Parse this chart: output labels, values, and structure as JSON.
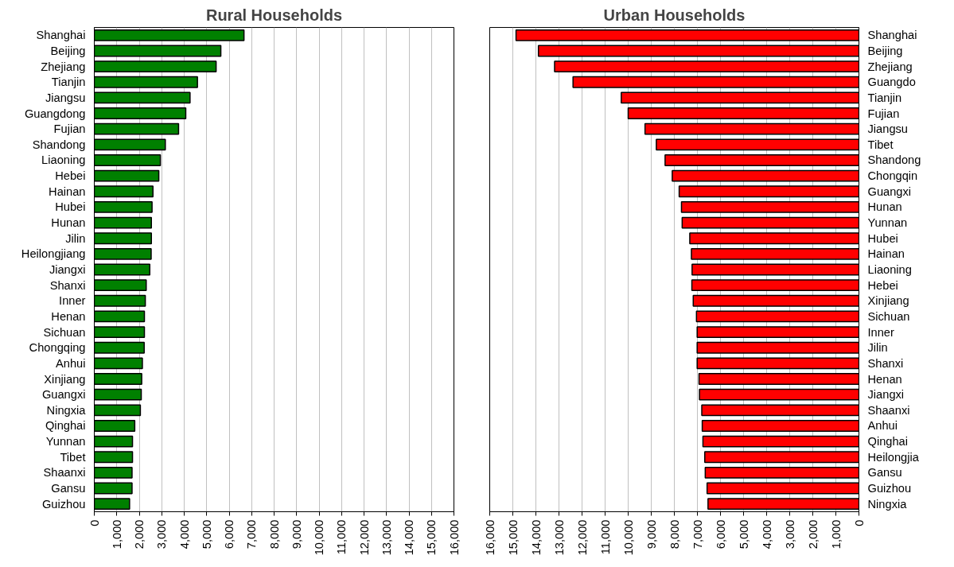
{
  "chart_data": [
    {
      "type": "bar",
      "orientation": "horizontal",
      "title": "Rural Households",
      "categories": [
        "Shanghai",
        "Beijing",
        "Zhejiang",
        "Tianjin",
        "Jiangsu",
        "Guangdong",
        "Fujian",
        "Shandong",
        "Liaoning",
        "Hebei",
        "Hainan",
        "Hubei",
        "Hunan",
        "Jilin",
        "Heilongjiang",
        "Jiangxi",
        "Shanxi",
        "Inner",
        "Henan",
        "Sichuan",
        "Chongqing",
        "Anhui",
        "Xinjiang",
        "Guangxi",
        "Ningxia",
        "Qinghai",
        "Yunnan",
        "Tibet",
        "Shaanxi",
        "Gansu",
        "Guizhou"
      ],
      "values": [
        6660,
        5630,
        5420,
        4590,
        4260,
        4070,
        3750,
        3160,
        2940,
        2870,
        2610,
        2570,
        2540,
        2540,
        2530,
        2470,
        2310,
        2270,
        2230,
        2230,
        2220,
        2140,
        2110,
        2090,
        2050,
        1800,
        1700,
        1700,
        1680,
        1680,
        1570
      ],
      "color": "#008000",
      "xlim": [
        0,
        16000
      ],
      "xticks": [
        0,
        {
          "value": 1000,
          "label": "1,000"
        },
        {
          "value": 2000,
          "label": "2,000"
        },
        {
          "value": 3000,
          "label": "3,000"
        },
        {
          "value": 4000,
          "label": "4,000"
        },
        {
          "value": 5000,
          "label": "5,000"
        },
        {
          "value": 6000,
          "label": "6,000"
        },
        {
          "value": 7000,
          "label": "7,000"
        },
        {
          "value": 8000,
          "label": "8,000"
        },
        {
          "value": 9000,
          "label": "9,000"
        },
        {
          "value": 10000,
          "label": "10,000"
        },
        {
          "value": 11000,
          "label": "11,000"
        },
        {
          "value": 12000,
          "label": "12,000"
        },
        {
          "value": 13000,
          "label": "13,000"
        },
        {
          "value": 14000,
          "label": "14,000"
        },
        {
          "value": 15000,
          "label": "15,000"
        },
        {
          "value": 16000,
          "label": "16,000"
        }
      ],
      "grid": "x"
    },
    {
      "type": "bar",
      "orientation": "horizontal",
      "title": "Urban Households",
      "categories": [
        "Shanghai",
        "Beijing",
        "Zhejiang",
        "Guangdo",
        "Tianjin",
        "Fujian",
        "Jiangsu",
        "Tibet",
        "Shandong",
        "Chongqin",
        "Guangxi",
        "Hunan",
        "Yunnan",
        "Hubei",
        "Hainan",
        "Liaoning",
        "Hebei",
        "Xinjiang",
        "Sichuan",
        "Inner",
        "Jilin",
        "Shanxi",
        "Henan",
        "Jiangxi",
        "Shaanxi",
        "Anhui",
        "Qinghai",
        "Heilongjia",
        "Gansu",
        "Guizhou",
        "Ningxia"
      ],
      "values": [
        14860,
        13890,
        13190,
        12390,
        10300,
        10000,
        9270,
        8780,
        8400,
        8090,
        7790,
        7690,
        7660,
        7330,
        7260,
        7230,
        7240,
        7180,
        7040,
        7010,
        7010,
        7010,
        6930,
        6910,
        6810,
        6790,
        6760,
        6680,
        6660,
        6580,
        6540
      ],
      "color": "#ff0000",
      "xlim": [
        16000,
        0
      ],
      "xticks": [
        0,
        {
          "value": 1000,
          "label": "1,000"
        },
        {
          "value": 2000,
          "label": "2,000"
        },
        {
          "value": 3000,
          "label": "3,000"
        },
        {
          "value": 4000,
          "label": "4,000"
        },
        {
          "value": 5000,
          "label": "5,000"
        },
        {
          "value": 6000,
          "label": "6,000"
        },
        {
          "value": 7000,
          "label": "7,000"
        },
        {
          "value": 8000,
          "label": "8,000"
        },
        {
          "value": 9000,
          "label": "9,000"
        },
        {
          "value": 10000,
          "label": "10,000"
        },
        {
          "value": 11000,
          "label": "11,000"
        },
        {
          "value": 12000,
          "label": "12,000"
        },
        {
          "value": 13000,
          "label": "13,000"
        },
        {
          "value": 14000,
          "label": "14,000"
        },
        {
          "value": 15000,
          "label": "15,000"
        },
        {
          "value": 16000,
          "label": "16,000"
        }
      ],
      "grid": "x"
    }
  ]
}
